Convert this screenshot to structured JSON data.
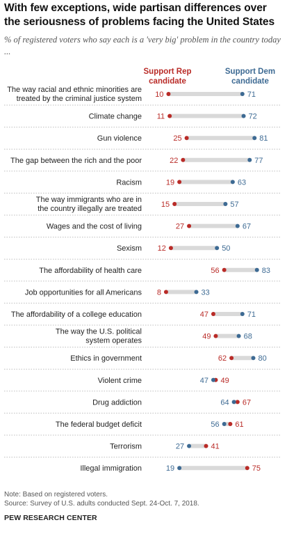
{
  "title": "With few exceptions, wide partisan differences over the seriousness of problems facing the United States",
  "subtitle": "% of registered voters who say each is a 'very big' problem in the country today ...",
  "legend": {
    "rep": "Support Rep candidate",
    "dem": "Support Dem candidate"
  },
  "colors": {
    "rep": "#b92b27",
    "dem": "#3d6a93",
    "bar": "#d9d9d9",
    "label": "#222222"
  },
  "chart_data": {
    "type": "dot",
    "series": [
      {
        "name": "Support Rep candidate",
        "key": "rep"
      },
      {
        "name": "Support Dem candidate",
        "key": "dem"
      }
    ],
    "rows": [
      {
        "label": [
          "The way racial and ethnic minorities are",
          "treated by the criminal justice system"
        ],
        "rep": 10,
        "dem": 71
      },
      {
        "label": [
          "Climate change"
        ],
        "rep": 11,
        "dem": 72
      },
      {
        "label": [
          "Gun violence"
        ],
        "rep": 25,
        "dem": 81
      },
      {
        "label": [
          "The gap between the rich and the poor"
        ],
        "rep": 22,
        "dem": 77
      },
      {
        "label": [
          "Racism"
        ],
        "rep": 19,
        "dem": 63
      },
      {
        "label": [
          "The way immigrants who are in",
          "the country illegally are treated"
        ],
        "rep": 15,
        "dem": 57
      },
      {
        "label": [
          "Wages and the cost of living"
        ],
        "rep": 27,
        "dem": 67
      },
      {
        "label": [
          "Sexism"
        ],
        "rep": 12,
        "dem": 50
      },
      {
        "label": [
          "The affordability of health care"
        ],
        "rep": 56,
        "dem": 83
      },
      {
        "label": [
          "Job opportunities for all Americans"
        ],
        "rep": 8,
        "dem": 33
      },
      {
        "label": [
          "The affordability of a college education"
        ],
        "rep": 47,
        "dem": 71
      },
      {
        "label": [
          "The way the U.S. political",
          "system operates"
        ],
        "rep": 49,
        "dem": 68
      },
      {
        "label": [
          "Ethics in government"
        ],
        "rep": 62,
        "dem": 80
      },
      {
        "label": [
          "Violent crime"
        ],
        "rep": 49,
        "dem": 47
      },
      {
        "label": [
          "Drug addiction"
        ],
        "rep": 67,
        "dem": 64
      },
      {
        "label": [
          "The federal budget deficit"
        ],
        "rep": 61,
        "dem": 56
      },
      {
        "label": [
          "Terrorism"
        ],
        "rep": 41,
        "dem": 27
      },
      {
        "label": [
          "Illegal immigration"
        ],
        "rep": 75,
        "dem": 19
      }
    ]
  },
  "notes": [
    "Note: Based on registered voters.",
    "Source: Survey of U.S. adults conducted Sept. 24-Oct. 7, 2018."
  ],
  "brand": "PEW RESEARCH CENTER"
}
